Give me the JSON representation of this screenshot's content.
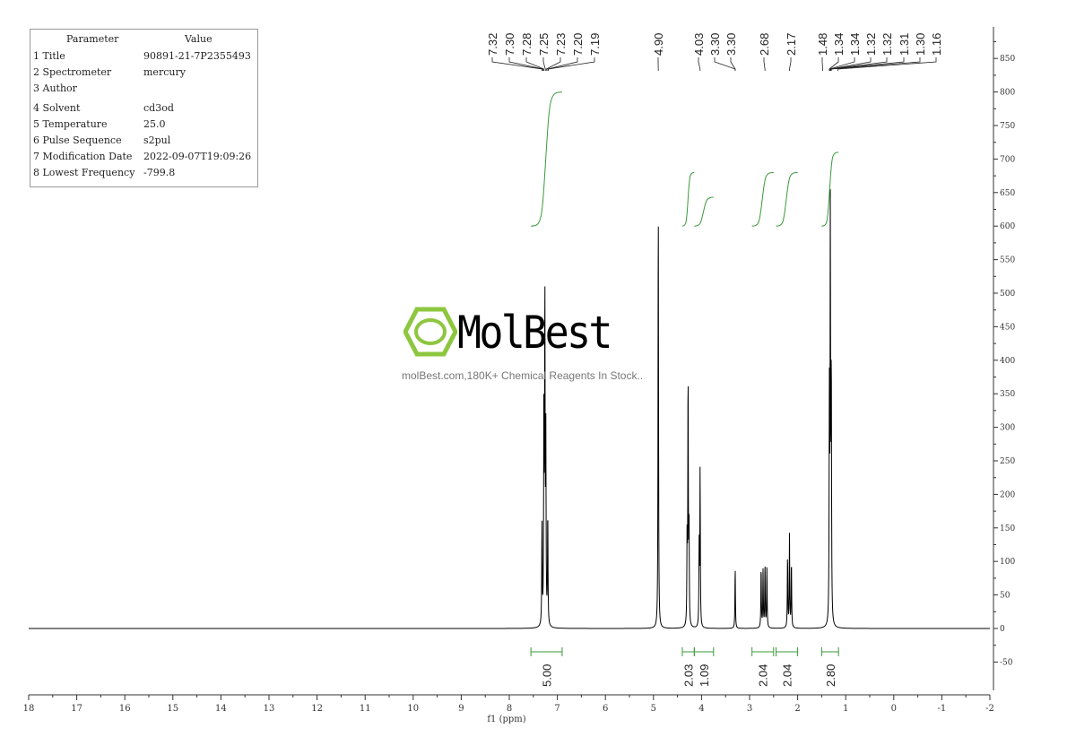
{
  "parameters": {
    "header": [
      "Parameter",
      "Value"
    ],
    "rows": [
      {
        "name": "1 Title",
        "value": "90891-21-7P2355493"
      },
      {
        "name": "2 Spectrometer",
        "value": "mercury"
      },
      {
        "name": "3 Author",
        "value": ""
      },
      {
        "name": "4 Solvent",
        "value": "cd3od"
      },
      {
        "name": "5 Temperature",
        "value": "25.0"
      },
      {
        "name": "6 Pulse Sequence",
        "value": "s2pul"
      },
      {
        "name": "7 Modification Date",
        "value": "2022-09-07T19:09:26"
      },
      {
        "name": "8 Lowest Frequency",
        "value": "-799.8"
      }
    ]
  },
  "watermark": {
    "brand": "MolBest",
    "tagline": "molBest.com,180K+ Chemical Reagents In Stock..",
    "color": "#8dc63f"
  },
  "chart_data": {
    "type": "line",
    "xlabel": "f1 (ppm)",
    "xlim": [
      18,
      -2
    ],
    "ylim": [
      -90,
      900
    ],
    "x_ticks": [
      "18",
      "17",
      "16",
      "15",
      "14",
      "13",
      "12",
      "11",
      "10",
      "9",
      "8",
      "7",
      "6",
      "5",
      "4",
      "3",
      "2",
      "1",
      "0",
      "-1",
      "-2"
    ],
    "y_ticks": [
      "-50",
      "0",
      "50",
      "100",
      "150",
      "200",
      "250",
      "300",
      "350",
      "400",
      "450",
      "500",
      "550",
      "600",
      "650",
      "700",
      "750",
      "800",
      "850"
    ],
    "y_axis_side": "right",
    "grid": false,
    "line_color": "#000000",
    "integral_color": "#3a9a3a",
    "peaks": [
      {
        "ppm": 7.32,
        "height": 150
      },
      {
        "ppm": 7.28,
        "height": 330
      },
      {
        "ppm": 7.26,
        "height": 490
      },
      {
        "ppm": 7.24,
        "height": 270
      },
      {
        "ppm": 7.2,
        "height": 170
      },
      {
        "ppm": 4.9,
        "height": 646
      },
      {
        "ppm": 4.3,
        "height": 130
      },
      {
        "ppm": 4.28,
        "height": 376
      },
      {
        "ppm": 4.26,
        "height": 140
      },
      {
        "ppm": 4.05,
        "height": 120
      },
      {
        "ppm": 4.03,
        "height": 234
      },
      {
        "ppm": 3.3,
        "height": 91
      },
      {
        "ppm": 2.76,
        "height": 92
      },
      {
        "ppm": 2.72,
        "height": 85
      },
      {
        "ppm": 2.68,
        "height": 96
      },
      {
        "ppm": 2.64,
        "height": 90
      },
      {
        "ppm": 2.21,
        "height": 108
      },
      {
        "ppm": 2.17,
        "height": 138
      },
      {
        "ppm": 2.13,
        "height": 100
      },
      {
        "ppm": 1.34,
        "height": 330
      },
      {
        "ppm": 1.32,
        "height": 610
      },
      {
        "ppm": 1.3,
        "height": 376
      }
    ],
    "peak_labels": [
      {
        "text": "7.32",
        "ppm": 7.32
      },
      {
        "text": "7.30",
        "ppm": 7.3
      },
      {
        "text": "7.28",
        "ppm": 7.28
      },
      {
        "text": "7.25",
        "ppm": 7.25
      },
      {
        "text": "7.23",
        "ppm": 7.23
      },
      {
        "text": "7.20",
        "ppm": 7.2
      },
      {
        "text": "7.19",
        "ppm": 7.19
      },
      {
        "text": "4.90",
        "ppm": 4.9
      },
      {
        "text": "4.03",
        "ppm": 4.03
      },
      {
        "text": "3.30",
        "ppm": 3.3
      },
      {
        "text": "3.30",
        "ppm": 3.3
      },
      {
        "text": "2.68",
        "ppm": 2.68
      },
      {
        "text": "2.17",
        "ppm": 2.17
      },
      {
        "text": "1.48",
        "ppm": 1.48
      },
      {
        "text": "1.34",
        "ppm": 1.34
      },
      {
        "text": "1.34",
        "ppm": 1.34
      },
      {
        "text": "1.32",
        "ppm": 1.32
      },
      {
        "text": "1.32",
        "ppm": 1.32
      },
      {
        "text": "1.31",
        "ppm": 1.31
      },
      {
        "text": "1.30",
        "ppm": 1.3
      },
      {
        "text": "1.16",
        "ppm": 1.16
      }
    ],
    "integrals": [
      {
        "from": 7.55,
        "to": 6.9,
        "value": "5.00",
        "level": [
          600,
          800
        ]
      },
      {
        "from": 4.4,
        "to": 4.15,
        "value": "2.03",
        "level": [
          600,
          680
        ]
      },
      {
        "from": 4.15,
        "to": 3.75,
        "value": "1.09",
        "level": [
          600,
          643
        ]
      },
      {
        "from": 2.95,
        "to": 2.5,
        "value": "2.04",
        "level": [
          600,
          680
        ]
      },
      {
        "from": 2.45,
        "to": 2.0,
        "value": "2.04",
        "level": [
          600,
          680
        ]
      },
      {
        "from": 1.5,
        "to": 1.15,
        "value": "2.80",
        "level": [
          600,
          710
        ]
      }
    ]
  }
}
